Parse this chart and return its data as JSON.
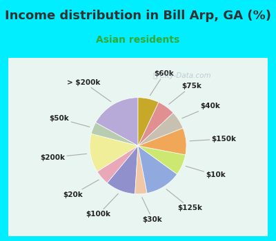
{
  "title": "Income distribution in Bill Arp, GA (%)",
  "subtitle": "Asian residents",
  "title_color": "#333333",
  "subtitle_color": "#33aa33",
  "background_outer": "#00eeff",
  "background_inner": "#e8f5ee",
  "watermark": "City-Data.com",
  "labels": [
    "> $200k",
    "$50k",
    "$200k",
    "$20k",
    "$100k",
    "$30k",
    "$125k",
    "$10k",
    "$150k",
    "$40k",
    "$75k",
    "$60k"
  ],
  "sizes": [
    17,
    4,
    13,
    5,
    10,
    4,
    12,
    7,
    9,
    6,
    6,
    7
  ],
  "colors": [
    "#b8aad8",
    "#b8cdb0",
    "#f0ee99",
    "#e8a8b8",
    "#9090cc",
    "#f0c8a8",
    "#90aae0",
    "#cce870",
    "#f0a858",
    "#c8c0b0",
    "#e09090",
    "#c8a828"
  ],
  "startangle": 90,
  "label_fontsize": 7.5,
  "title_fontsize": 13,
  "subtitle_fontsize": 10,
  "label_color": "#222222"
}
